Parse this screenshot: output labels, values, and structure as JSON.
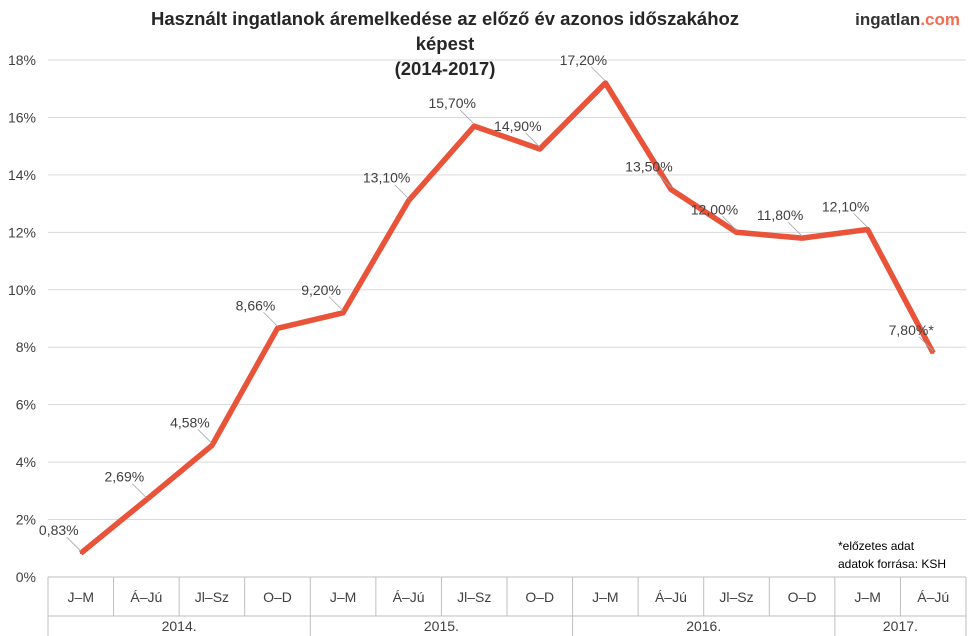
{
  "logo": {
    "part1": "ingatlan",
    "part2": ".com",
    "accent": "#f26c4f"
  },
  "notes": [
    "*előzetes adat",
    "adatok forrása: KSH"
  ],
  "chart_data": {
    "type": "line",
    "title": "Használt ingatlanok áremelkedése az előző év azonos időszakához képest (2014-2017)",
    "title_lines": [
      "Használt ingatlanok áremelkedése az előző év azonos időszakához képest",
      "(2014-2017)"
    ],
    "categories": [
      "J–M",
      "Á–Jú",
      "Jl–Sz",
      "O–D",
      "J–M",
      "Á–Jú",
      "Jl–Sz",
      "O–D",
      "J–M",
      "Á–Jú",
      "Jl–Sz",
      "O–D",
      "J–M",
      "Á–Jú"
    ],
    "groups": [
      {
        "label": "2014.",
        "count": 4
      },
      {
        "label": "2015.",
        "count": 4
      },
      {
        "label": "2016.",
        "count": 4
      },
      {
        "label": "2017.",
        "count": 2
      }
    ],
    "series": [
      {
        "values": [
          0.83,
          2.69,
          4.58,
          8.66,
          9.2,
          13.1,
          15.7,
          14.9,
          17.2,
          13.5,
          12.0,
          11.8,
          12.1,
          7.8
        ],
        "data_labels": [
          "0,83%",
          "2,69%",
          "4,58%",
          "8,66%",
          "9,20%",
          "13,10%",
          "15,70%",
          "14,90%",
          "17,20%",
          "13,50%",
          "12,00%",
          "11,80%",
          "12,10%",
          "7,80%*"
        ],
        "color": "#e8533a"
      }
    ],
    "y_ticks": [
      "0%",
      "2%",
      "4%",
      "6%",
      "8%",
      "10%",
      "12%",
      "14%",
      "16%",
      "18%"
    ],
    "ylim": [
      0,
      18
    ],
    "grid": true
  }
}
